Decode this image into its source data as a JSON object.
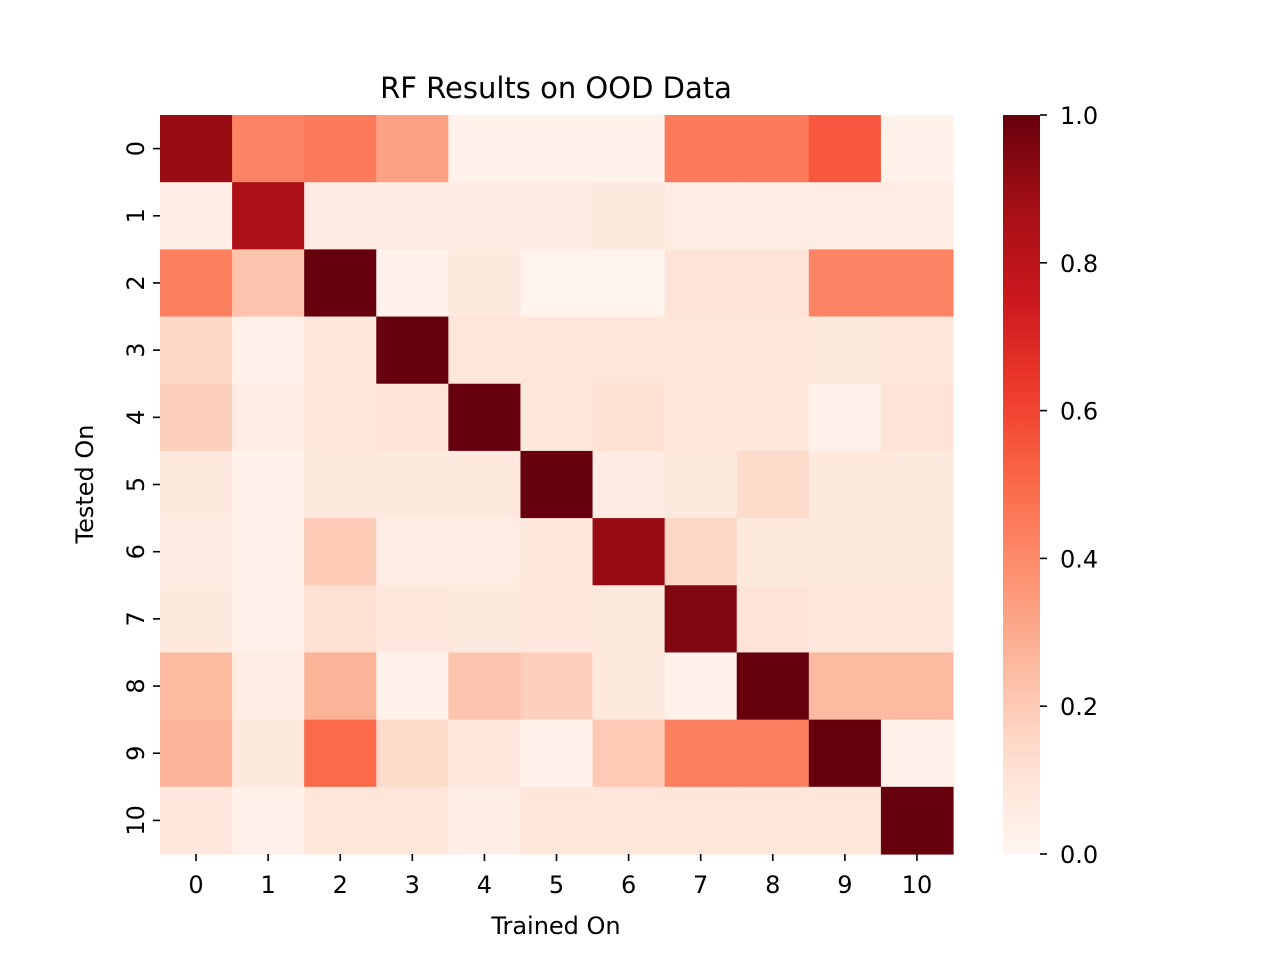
{
  "chart_data": {
    "type": "heatmap",
    "title": "RF Results on OOD Data",
    "xlabel": "Trained On",
    "ylabel": "Tested On",
    "x_categories": [
      "0",
      "1",
      "2",
      "3",
      "4",
      "5",
      "6",
      "7",
      "8",
      "9",
      "10"
    ],
    "y_categories": [
      "0",
      "1",
      "2",
      "3",
      "4",
      "5",
      "6",
      "7",
      "8",
      "9",
      "10"
    ],
    "colormap": "Reds",
    "vmin": 0.0,
    "vmax": 1.0,
    "colorbar_ticks": [
      "0.0",
      "0.2",
      "0.4",
      "0.6",
      "0.8",
      "1.0"
    ],
    "values": [
      [
        0.9,
        0.42,
        0.45,
        0.33,
        0.02,
        0.02,
        0.02,
        0.45,
        0.45,
        0.55,
        0.02
      ],
      [
        0.04,
        0.85,
        0.06,
        0.06,
        0.06,
        0.06,
        0.07,
        0.05,
        0.05,
        0.05,
        0.05
      ],
      [
        0.43,
        0.22,
        1.0,
        0.02,
        0.07,
        0.01,
        0.01,
        0.1,
        0.1,
        0.42,
        0.42
      ],
      [
        0.15,
        0.03,
        0.08,
        1.0,
        0.09,
        0.09,
        0.09,
        0.09,
        0.09,
        0.07,
        0.09
      ],
      [
        0.18,
        0.05,
        0.08,
        0.1,
        1.0,
        0.08,
        0.12,
        0.08,
        0.08,
        0.03,
        0.11
      ],
      [
        0.07,
        0.02,
        0.07,
        0.07,
        0.07,
        1.0,
        0.06,
        0.07,
        0.14,
        0.07,
        0.07
      ],
      [
        0.06,
        0.03,
        0.2,
        0.05,
        0.05,
        0.08,
        0.9,
        0.16,
        0.07,
        0.07,
        0.07
      ],
      [
        0.07,
        0.03,
        0.12,
        0.08,
        0.07,
        0.08,
        0.07,
        0.95,
        0.1,
        0.08,
        0.08
      ],
      [
        0.25,
        0.05,
        0.27,
        0.02,
        0.22,
        0.18,
        0.07,
        0.02,
        1.0,
        0.25,
        0.25
      ],
      [
        0.27,
        0.07,
        0.5,
        0.14,
        0.08,
        0.02,
        0.2,
        0.43,
        0.43,
        1.0,
        0.03
      ],
      [
        0.08,
        0.03,
        0.09,
        0.09,
        0.04,
        0.09,
        0.09,
        0.09,
        0.09,
        0.09,
        1.0
      ]
    ]
  }
}
